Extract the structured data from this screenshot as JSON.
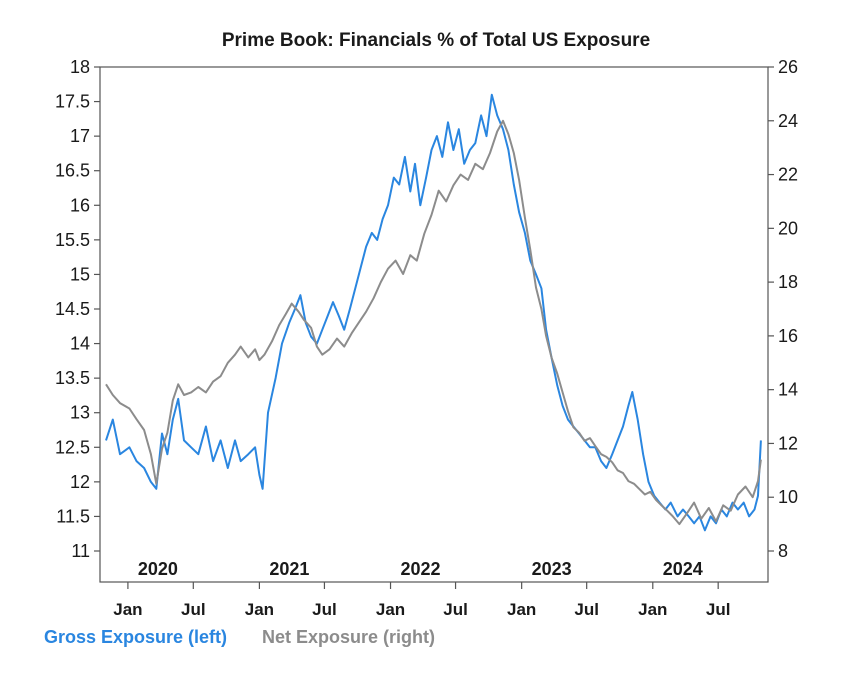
{
  "chart_data": {
    "type": "line",
    "title": "Prime Book: Financials % of Total US Exposure",
    "left_axis": {
      "min": 11,
      "max": 18,
      "ticks": [
        11,
        11.5,
        12,
        12.5,
        13,
        13.5,
        14,
        14.5,
        15,
        15.5,
        16,
        16.5,
        17,
        17.5,
        18
      ],
      "tick_labels": [
        "11",
        "11.5",
        "12",
        "12.5",
        "13",
        "13.5",
        "14",
        "14.5",
        "15",
        "15.5",
        "16",
        "16.5",
        "17",
        "17.5",
        "18"
      ]
    },
    "right_axis": {
      "min": 8,
      "max": 26,
      "ticks": [
        8,
        10,
        12,
        14,
        16,
        18,
        20,
        22,
        24,
        26
      ],
      "tick_labels": [
        "8",
        "10",
        "12",
        "14",
        "16",
        "18",
        "20",
        "22",
        "24",
        "26"
      ]
    },
    "x_axis": {
      "range": [
        "2019-11-01",
        "2024-10-31"
      ],
      "year_labels": [
        {
          "label": "2020",
          "date": "2020-01-01"
        },
        {
          "label": "2021",
          "date": "2021-01-01"
        },
        {
          "label": "2022",
          "date": "2022-01-01"
        },
        {
          "label": "2023",
          "date": "2023-01-01"
        },
        {
          "label": "2024",
          "date": "2024-01-01"
        }
      ],
      "month_labels": [
        {
          "label": "Jan",
          "date": "2020-01-01"
        },
        {
          "label": "Jul",
          "date": "2020-07-01"
        },
        {
          "label": "Jan",
          "date": "2021-01-01"
        },
        {
          "label": "Jul",
          "date": "2021-07-01"
        },
        {
          "label": "Jan",
          "date": "2022-01-01"
        },
        {
          "label": "Jul",
          "date": "2022-07-01"
        },
        {
          "label": "Jan",
          "date": "2023-01-01"
        },
        {
          "label": "Jul",
          "date": "2023-07-01"
        },
        {
          "label": "Jan",
          "date": "2024-01-01"
        },
        {
          "label": "Jul",
          "date": "2024-07-01"
        }
      ]
    },
    "grid": false,
    "legend_position": "bottom-left",
    "series": [
      {
        "name": "Gross Exposure (left)",
        "axis": "left",
        "color": "#2a86e0",
        "points": [
          [
            "2019-11-01",
            12.6
          ],
          [
            "2019-11-20",
            12.9
          ],
          [
            "2019-12-10",
            12.4
          ],
          [
            "2020-01-05",
            12.5
          ],
          [
            "2020-01-25",
            12.3
          ],
          [
            "2020-02-15",
            12.2
          ],
          [
            "2020-03-05",
            12.0
          ],
          [
            "2020-03-20",
            11.9
          ],
          [
            "2020-04-05",
            12.7
          ],
          [
            "2020-04-20",
            12.4
          ],
          [
            "2020-05-05",
            12.9
          ],
          [
            "2020-05-20",
            13.2
          ],
          [
            "2020-06-05",
            12.6
          ],
          [
            "2020-06-25",
            12.5
          ],
          [
            "2020-07-15",
            12.4
          ],
          [
            "2020-08-05",
            12.8
          ],
          [
            "2020-08-25",
            12.3
          ],
          [
            "2020-09-15",
            12.6
          ],
          [
            "2020-10-05",
            12.2
          ],
          [
            "2020-10-25",
            12.6
          ],
          [
            "2020-11-10",
            12.3
          ],
          [
            "2020-12-01",
            12.4
          ],
          [
            "2020-12-20",
            12.5
          ],
          [
            "2021-01-01",
            12.1
          ],
          [
            "2021-01-10",
            11.9
          ],
          [
            "2021-01-25",
            13.0
          ],
          [
            "2021-02-15",
            13.5
          ],
          [
            "2021-03-05",
            14.0
          ],
          [
            "2021-03-25",
            14.3
          ],
          [
            "2021-04-10",
            14.5
          ],
          [
            "2021-04-25",
            14.7
          ],
          [
            "2021-05-10",
            14.3
          ],
          [
            "2021-05-25",
            14.1
          ],
          [
            "2021-06-10",
            14.0
          ],
          [
            "2021-06-25",
            14.2
          ],
          [
            "2021-07-10",
            14.4
          ],
          [
            "2021-07-25",
            14.6
          ],
          [
            "2021-08-10",
            14.4
          ],
          [
            "2021-08-25",
            14.2
          ],
          [
            "2021-09-10",
            14.5
          ],
          [
            "2021-09-25",
            14.8
          ],
          [
            "2021-10-10",
            15.1
          ],
          [
            "2021-10-25",
            15.4
          ],
          [
            "2021-11-10",
            15.6
          ],
          [
            "2021-11-25",
            15.5
          ],
          [
            "2021-12-10",
            15.8
          ],
          [
            "2021-12-25",
            16.0
          ],
          [
            "2022-01-10",
            16.4
          ],
          [
            "2022-01-25",
            16.3
          ],
          [
            "2022-02-10",
            16.7
          ],
          [
            "2022-02-25",
            16.2
          ],
          [
            "2022-03-10",
            16.6
          ],
          [
            "2022-03-25",
            16.0
          ],
          [
            "2022-04-10",
            16.4
          ],
          [
            "2022-04-25",
            16.8
          ],
          [
            "2022-05-10",
            17.0
          ],
          [
            "2022-05-25",
            16.7
          ],
          [
            "2022-06-10",
            17.2
          ],
          [
            "2022-06-25",
            16.8
          ],
          [
            "2022-07-10",
            17.1
          ],
          [
            "2022-07-25",
            16.6
          ],
          [
            "2022-08-10",
            16.8
          ],
          [
            "2022-08-25",
            16.9
          ],
          [
            "2022-09-10",
            17.3
          ],
          [
            "2022-09-25",
            17.0
          ],
          [
            "2022-10-10",
            17.6
          ],
          [
            "2022-10-25",
            17.3
          ],
          [
            "2022-11-10",
            17.1
          ],
          [
            "2022-11-25",
            16.8
          ],
          [
            "2022-12-10",
            16.3
          ],
          [
            "2022-12-25",
            15.9
          ],
          [
            "2023-01-10",
            15.6
          ],
          [
            "2023-01-25",
            15.2
          ],
          [
            "2023-02-10",
            15.0
          ],
          [
            "2023-02-25",
            14.8
          ],
          [
            "2023-03-10",
            14.2
          ],
          [
            "2023-03-25",
            13.8
          ],
          [
            "2023-04-10",
            13.4
          ],
          [
            "2023-04-25",
            13.1
          ],
          [
            "2023-05-10",
            12.9
          ],
          [
            "2023-05-25",
            12.8
          ],
          [
            "2023-06-10",
            12.7
          ],
          [
            "2023-06-25",
            12.6
          ],
          [
            "2023-07-10",
            12.5
          ],
          [
            "2023-07-25",
            12.5
          ],
          [
            "2023-08-10",
            12.3
          ],
          [
            "2023-08-25",
            12.2
          ],
          [
            "2023-09-10",
            12.4
          ],
          [
            "2023-09-25",
            12.6
          ],
          [
            "2023-10-10",
            12.8
          ],
          [
            "2023-10-25",
            13.1
          ],
          [
            "2023-11-05",
            13.3
          ],
          [
            "2023-11-20",
            12.9
          ],
          [
            "2023-12-05",
            12.4
          ],
          [
            "2023-12-20",
            12.0
          ],
          [
            "2024-01-05",
            11.8
          ],
          [
            "2024-01-20",
            11.7
          ],
          [
            "2024-02-05",
            11.6
          ],
          [
            "2024-02-20",
            11.7
          ],
          [
            "2024-03-10",
            11.5
          ],
          [
            "2024-03-25",
            11.6
          ],
          [
            "2024-04-10",
            11.5
          ],
          [
            "2024-04-25",
            11.4
          ],
          [
            "2024-05-10",
            11.5
          ],
          [
            "2024-05-25",
            11.3
          ],
          [
            "2024-06-10",
            11.5
          ],
          [
            "2024-06-25",
            11.4
          ],
          [
            "2024-07-10",
            11.6
          ],
          [
            "2024-07-25",
            11.5
          ],
          [
            "2024-08-10",
            11.7
          ],
          [
            "2024-08-25",
            11.6
          ],
          [
            "2024-09-10",
            11.7
          ],
          [
            "2024-09-25",
            11.5
          ],
          [
            "2024-10-10",
            11.6
          ],
          [
            "2024-10-20",
            11.8
          ],
          [
            "2024-10-28",
            12.6
          ]
        ]
      },
      {
        "name": "Net Exposure (right)",
        "axis": "right",
        "color": "#8c8c8c",
        "points": [
          [
            "2019-11-01",
            14.2
          ],
          [
            "2019-11-20",
            13.8
          ],
          [
            "2019-12-10",
            13.5
          ],
          [
            "2020-01-05",
            13.3
          ],
          [
            "2020-01-25",
            12.9
          ],
          [
            "2020-02-15",
            12.5
          ],
          [
            "2020-03-05",
            11.6
          ],
          [
            "2020-03-20",
            10.5
          ],
          [
            "2020-04-05",
            11.8
          ],
          [
            "2020-04-20",
            12.4
          ],
          [
            "2020-05-05",
            13.6
          ],
          [
            "2020-05-20",
            14.2
          ],
          [
            "2020-06-05",
            13.8
          ],
          [
            "2020-06-25",
            13.9
          ],
          [
            "2020-07-15",
            14.1
          ],
          [
            "2020-08-05",
            13.9
          ],
          [
            "2020-08-25",
            14.3
          ],
          [
            "2020-09-15",
            14.5
          ],
          [
            "2020-10-05",
            15.0
          ],
          [
            "2020-10-25",
            15.3
          ],
          [
            "2020-11-10",
            15.6
          ],
          [
            "2020-12-01",
            15.2
          ],
          [
            "2020-12-20",
            15.5
          ],
          [
            "2021-01-01",
            15.1
          ],
          [
            "2021-01-15",
            15.3
          ],
          [
            "2021-02-05",
            15.8
          ],
          [
            "2021-02-25",
            16.4
          ],
          [
            "2021-03-15",
            16.8
          ],
          [
            "2021-04-01",
            17.2
          ],
          [
            "2021-04-20",
            16.9
          ],
          [
            "2021-05-05",
            16.6
          ],
          [
            "2021-05-25",
            16.3
          ],
          [
            "2021-06-10",
            15.6
          ],
          [
            "2021-06-25",
            15.3
          ],
          [
            "2021-07-15",
            15.5
          ],
          [
            "2021-08-05",
            15.9
          ],
          [
            "2021-08-25",
            15.6
          ],
          [
            "2021-09-15",
            16.1
          ],
          [
            "2021-10-05",
            16.5
          ],
          [
            "2021-10-25",
            16.9
          ],
          [
            "2021-11-15",
            17.4
          ],
          [
            "2021-12-05",
            18.0
          ],
          [
            "2021-12-25",
            18.5
          ],
          [
            "2022-01-15",
            18.8
          ],
          [
            "2022-02-05",
            18.3
          ],
          [
            "2022-02-25",
            19.0
          ],
          [
            "2022-03-15",
            18.8
          ],
          [
            "2022-04-05",
            19.8
          ],
          [
            "2022-04-25",
            20.5
          ],
          [
            "2022-05-15",
            21.4
          ],
          [
            "2022-06-05",
            21.0
          ],
          [
            "2022-06-25",
            21.6
          ],
          [
            "2022-07-15",
            22.0
          ],
          [
            "2022-08-05",
            21.8
          ],
          [
            "2022-08-25",
            22.4
          ],
          [
            "2022-09-15",
            22.2
          ],
          [
            "2022-10-05",
            22.8
          ],
          [
            "2022-10-25",
            23.6
          ],
          [
            "2022-11-10",
            24.0
          ],
          [
            "2022-11-25",
            23.5
          ],
          [
            "2022-12-10",
            22.8
          ],
          [
            "2022-12-25",
            21.8
          ],
          [
            "2023-01-10",
            20.4
          ],
          [
            "2023-01-25",
            19.2
          ],
          [
            "2023-02-10",
            17.8
          ],
          [
            "2023-02-25",
            17.0
          ],
          [
            "2023-03-10",
            16.0
          ],
          [
            "2023-03-25",
            15.2
          ],
          [
            "2023-04-10",
            14.6
          ],
          [
            "2023-04-25",
            13.9
          ],
          [
            "2023-05-10",
            13.2
          ],
          [
            "2023-05-25",
            12.6
          ],
          [
            "2023-06-10",
            12.4
          ],
          [
            "2023-06-25",
            12.1
          ],
          [
            "2023-07-10",
            12.2
          ],
          [
            "2023-07-25",
            11.9
          ],
          [
            "2023-08-10",
            11.6
          ],
          [
            "2023-08-25",
            11.5
          ],
          [
            "2023-09-10",
            11.3
          ],
          [
            "2023-09-25",
            11.0
          ],
          [
            "2023-10-10",
            10.9
          ],
          [
            "2023-10-25",
            10.6
          ],
          [
            "2023-11-10",
            10.5
          ],
          [
            "2023-11-25",
            10.3
          ],
          [
            "2023-12-10",
            10.1
          ],
          [
            "2023-12-25",
            10.2
          ],
          [
            "2024-01-10",
            9.9
          ],
          [
            "2024-01-25",
            9.7
          ],
          [
            "2024-02-10",
            9.5
          ],
          [
            "2024-02-25",
            9.3
          ],
          [
            "2024-03-15",
            9.0
          ],
          [
            "2024-04-05",
            9.4
          ],
          [
            "2024-04-25",
            9.8
          ],
          [
            "2024-05-15",
            9.2
          ],
          [
            "2024-06-05",
            9.6
          ],
          [
            "2024-06-25",
            9.1
          ],
          [
            "2024-07-15",
            9.7
          ],
          [
            "2024-08-05",
            9.5
          ],
          [
            "2024-08-25",
            10.1
          ],
          [
            "2024-09-15",
            10.4
          ],
          [
            "2024-10-05",
            10.0
          ],
          [
            "2024-10-20",
            10.6
          ],
          [
            "2024-10-28",
            11.4
          ]
        ]
      }
    ]
  }
}
